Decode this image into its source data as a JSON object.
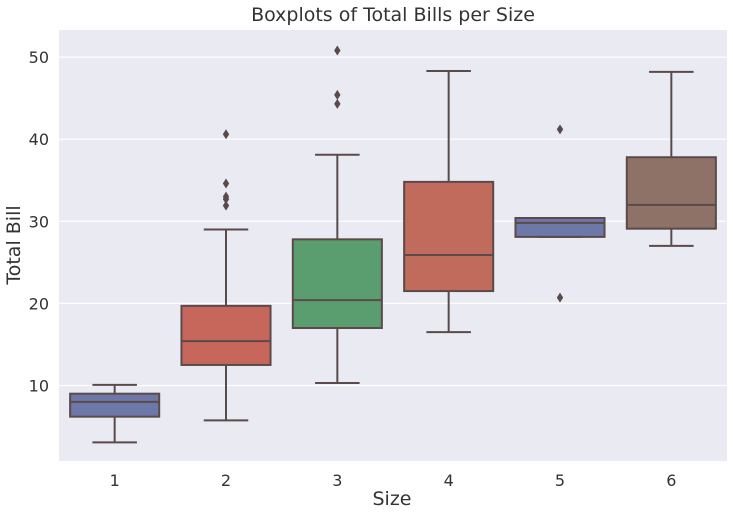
{
  "chart_data": {
    "type": "box",
    "title": "Boxplots of Total Bills per Size",
    "xlabel": "Size",
    "ylabel": "Total Bill",
    "categories": [
      "1",
      "2",
      "3",
      "4",
      "5",
      "6"
    ],
    "ylim": [
      0.8,
      53.3
    ],
    "yticks": [
      10,
      20,
      30,
      40,
      50
    ],
    "grid": true,
    "legend": "none",
    "background": "#eaeaf2",
    "box_edge_color": "#5a4a4a",
    "boxes": [
      {
        "category": "1",
        "whisker_low": 3.07,
        "q1": 6.2,
        "median": 8.0,
        "q3": 9.0,
        "whisker_high": 10.07,
        "outliers": [],
        "color": "#6d78a8"
      },
      {
        "category": "2",
        "whisker_low": 5.75,
        "q1": 12.5,
        "median": 15.4,
        "q3": 19.7,
        "whisker_high": 29.0,
        "outliers": [
          31.9,
          32.7,
          33.0,
          34.6,
          40.6
        ],
        "color": "#c7665a"
      },
      {
        "category": "3",
        "whisker_low": 10.3,
        "q1": 17.0,
        "median": 20.4,
        "q3": 27.8,
        "whisker_high": 38.1,
        "outliers": [
          44.3,
          45.4,
          50.8
        ],
        "color": "#5a9e6f"
      },
      {
        "category": "4",
        "whisker_low": 16.5,
        "q1": 21.5,
        "median": 25.9,
        "q3": 34.8,
        "whisker_high": 48.3,
        "outliers": [],
        "color": "#c06b5b"
      },
      {
        "category": "5",
        "whisker_low": 28.1,
        "q1": 28.1,
        "median": 29.8,
        "q3": 30.4,
        "whisker_high": 30.4,
        "outliers": [
          20.7,
          41.2
        ],
        "color": "#6d78a8"
      },
      {
        "category": "6",
        "whisker_low": 27.0,
        "q1": 29.1,
        "median": 32.0,
        "q3": 37.8,
        "whisker_high": 48.2,
        "outliers": [],
        "color": "#8e7268"
      }
    ]
  }
}
